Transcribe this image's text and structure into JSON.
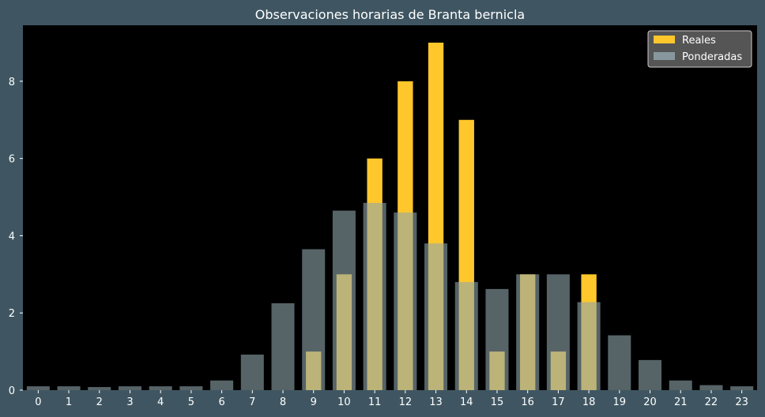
{
  "chart_data": {
    "type": "bar",
    "title": "Observaciones horarias de Branta bernicla",
    "xlabel": "",
    "ylabel": "",
    "categories": [
      "0",
      "1",
      "2",
      "3",
      "4",
      "5",
      "6",
      "7",
      "8",
      "9",
      "10",
      "11",
      "12",
      "13",
      "14",
      "15",
      "16",
      "17",
      "18",
      "19",
      "20",
      "21",
      "22",
      "23"
    ],
    "series": [
      {
        "name": "Reales",
        "color": "#ffc72c",
        "values": [
          0,
          0,
          0,
          0,
          0,
          0,
          0,
          0,
          0,
          1,
          3,
          6,
          8,
          9,
          7,
          1,
          3,
          1,
          3,
          0,
          0,
          0,
          0,
          0
        ]
      },
      {
        "name": "Ponderadas",
        "color": "#8fa5ab",
        "values": [
          0.1,
          0.1,
          0.08,
          0.1,
          0.1,
          0.1,
          0.25,
          0.92,
          2.25,
          3.65,
          4.65,
          4.85,
          4.6,
          3.8,
          2.8,
          2.62,
          3.0,
          3.0,
          2.28,
          1.42,
          0.78,
          0.25,
          0.13,
          0.1
        ]
      }
    ],
    "yticks": [
      0,
      2,
      4,
      6,
      8
    ],
    "ylim": [
      0,
      9.45
    ],
    "xlim": [
      -0.5,
      23.5
    ],
    "grid": false,
    "legend": "top-right",
    "colors": {
      "background": "#3f5662",
      "plot_background": "#000000"
    }
  }
}
